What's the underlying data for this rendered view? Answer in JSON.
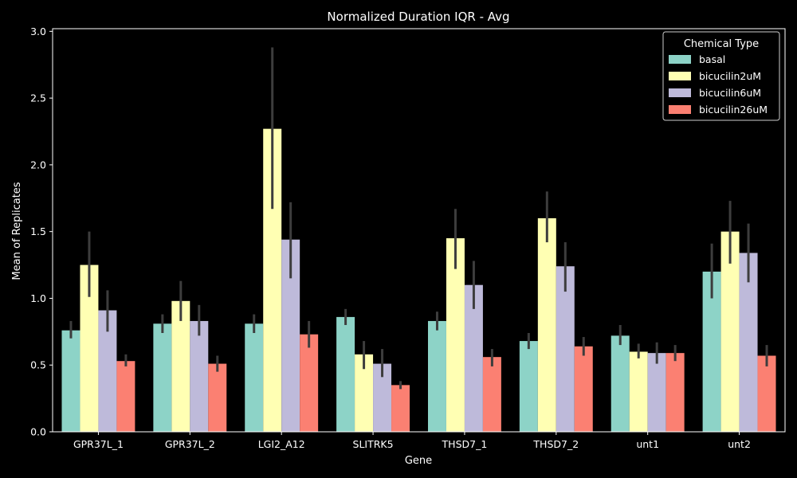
{
  "chart_data": {
    "type": "bar",
    "title": "Normalized Duration IQR - Avg",
    "xlabel": "Gene",
    "ylabel": "Mean of Replicates",
    "ylim": [
      0,
      3.02
    ],
    "yticks": [
      "0.0",
      "0.5",
      "1.0",
      "1.5",
      "2.0",
      "2.5",
      "3.0"
    ],
    "ytick_values": [
      0,
      0.5,
      1.0,
      1.5,
      2.0,
      2.5,
      3.0
    ],
    "categories": [
      "GPR37L_1",
      "GPR37L_2",
      "LGI2_A12",
      "SLITRK5",
      "THSD7_1",
      "THSD7_2",
      "unt1",
      "unt2"
    ],
    "legend": {
      "title": "Chemical Type",
      "position": "top-right"
    },
    "grid": false,
    "series": [
      {
        "name": "basal",
        "color": "#8dd3c7",
        "values": [
          0.76,
          0.81,
          0.81,
          0.86,
          0.83,
          0.68,
          0.72,
          1.2
        ],
        "err_low": [
          0.7,
          0.74,
          0.74,
          0.8,
          0.76,
          0.62,
          0.65,
          1.0
        ],
        "err_high": [
          0.83,
          0.88,
          0.88,
          0.92,
          0.9,
          0.74,
          0.8,
          1.41
        ]
      },
      {
        "name": "bicucilin2uM",
        "color": "#ffffb3",
        "values": [
          1.25,
          0.98,
          2.27,
          0.58,
          1.45,
          1.6,
          0.6,
          1.5
        ],
        "err_low": [
          1.01,
          0.83,
          1.67,
          0.47,
          1.22,
          1.42,
          0.55,
          1.26
        ],
        "err_high": [
          1.5,
          1.13,
          2.88,
          0.68,
          1.67,
          1.8,
          0.66,
          1.73
        ]
      },
      {
        "name": "bicucilin6uM",
        "color": "#bebada",
        "values": [
          0.91,
          0.83,
          1.44,
          0.51,
          1.1,
          1.24,
          0.59,
          1.34
        ],
        "err_low": [
          0.75,
          0.72,
          1.15,
          0.41,
          0.92,
          1.05,
          0.51,
          1.12
        ],
        "err_high": [
          1.06,
          0.95,
          1.72,
          0.62,
          1.28,
          1.42,
          0.67,
          1.56
        ]
      },
      {
        "name": "bicucilin26uM",
        "color": "#fb8072",
        "values": [
          0.53,
          0.51,
          0.73,
          0.35,
          0.56,
          0.64,
          0.59,
          0.57
        ],
        "err_low": [
          0.49,
          0.45,
          0.63,
          0.32,
          0.49,
          0.57,
          0.53,
          0.49
        ],
        "err_high": [
          0.58,
          0.57,
          0.83,
          0.38,
          0.62,
          0.71,
          0.65,
          0.65
        ]
      }
    ]
  }
}
